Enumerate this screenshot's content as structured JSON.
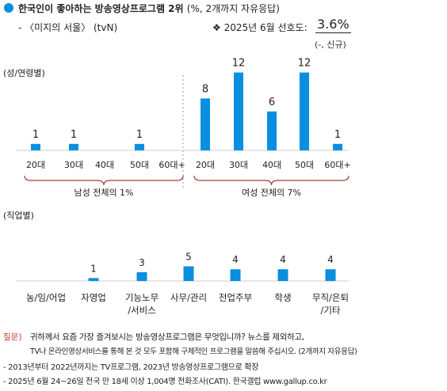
{
  "header": {
    "title": "한국인이 좋아하는 방송영상프로그램 2위",
    "title_note": "(%, 2개까지 자유응답)",
    "program": "- 〈미지의 서울〉 (tvN)",
    "pref_label": "❖  2025년 6월 선호도:",
    "pref_value": "3.6%",
    "pref_sub": "(-, 신규)",
    "accent_color": "#0a8ee0"
  },
  "chart_data": [
    {
      "type": "bar",
      "section_label": "(성/연령별)",
      "categories": [
        "20대",
        "30대",
        "40대",
        "50대",
        "60대+",
        "20대",
        "30대",
        "40대",
        "50대",
        "60대+"
      ],
      "values": [
        1,
        1,
        null,
        1,
        null,
        8,
        12,
        6,
        12,
        1
      ],
      "groups": [
        {
          "label": "남성 전체의 1%",
          "start": 0,
          "end": 4
        },
        {
          "label": "여성 전체의 7%",
          "start": 5,
          "end": 9
        }
      ],
      "bar_color": "#0a8ee0"
    },
    {
      "type": "bar",
      "section_label": "(직업별)",
      "categories": [
        "농/임/어업",
        "자영업",
        "기능노무\n/서비스",
        "사무/관리",
        "전업주부",
        "학생",
        "무직/은퇴\n/기타"
      ],
      "values": [
        null,
        1,
        3,
        5,
        4,
        4,
        4
      ],
      "bar_color": "#0a8ee0"
    }
  ],
  "footer": {
    "q_label": "질문)",
    "q_label_color": "#c0392b",
    "q_line1": "귀하께서 요즘 가장 즐겨보시는 방송영상프로그램은 무엇입니까? 뉴스를 제외하고,",
    "q_line2": "TV나 온라인영상서비스를 통해 본 것 모두 포함해 구체적인 프로그램을 말씀해 주십시오. (2개까지 자유응답)",
    "note1": "- 2013년부터 2022년까지는 TV프로그램, 2023년 방송영상프로그램으로 확장",
    "note2": "- 2025년 6월 24~26일 전국 만 18세 이상 1,004명 전화조사(CATI). 한국갤럽 www.gallup.co.kr"
  }
}
